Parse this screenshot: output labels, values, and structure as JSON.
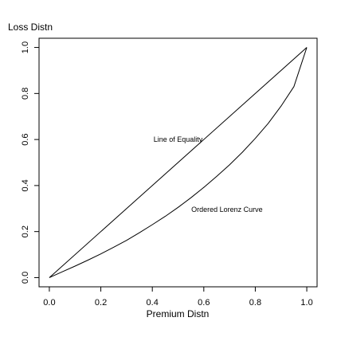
{
  "chart_data": {
    "type": "line",
    "title": "",
    "xlabel": "Premium Distn",
    "ylabel": "Loss Distn",
    "xlim": [
      -0.04,
      1.04
    ],
    "ylim": [
      -0.04,
      1.04
    ],
    "x_ticks": [
      0.0,
      0.2,
      0.4,
      0.6,
      0.8,
      1.0
    ],
    "x_tick_labels": [
      "0.0",
      "0.2",
      "0.4",
      "0.6",
      "0.8",
      "1.0"
    ],
    "y_ticks": [
      0.0,
      0.2,
      0.4,
      0.6,
      0.8,
      1.0
    ],
    "y_tick_labels": [
      "0.0",
      "0.2",
      "0.4",
      "0.6",
      "0.8",
      "1.0"
    ],
    "grid": false,
    "legend": "none",
    "series": [
      {
        "x": [
          0.0,
          1.0
        ],
        "y": [
          0.0,
          1.0
        ]
      },
      {
        "x": [
          0.0,
          0.05,
          0.1,
          0.15,
          0.2,
          0.25,
          0.3,
          0.35,
          0.4,
          0.45,
          0.5,
          0.55,
          0.6,
          0.65,
          0.7,
          0.75,
          0.8,
          0.85,
          0.9,
          0.95,
          1.0
        ],
        "y": [
          0.0,
          0.025,
          0.05,
          0.076,
          0.103,
          0.132,
          0.162,
          0.195,
          0.23,
          0.266,
          0.305,
          0.347,
          0.392,
          0.44,
          0.49,
          0.545,
          0.605,
          0.67,
          0.745,
          0.83,
          1.0
        ]
      }
    ],
    "annotations": [
      {
        "text": "Line of Equality",
        "x": 0.5,
        "y": 0.6
      },
      {
        "text": "Ordered Lorenz Curve",
        "x": 0.69,
        "y": 0.295
      }
    ],
    "colors": {
      "line": "#000000",
      "axis": "#000000",
      "background": "#ffffff"
    }
  }
}
